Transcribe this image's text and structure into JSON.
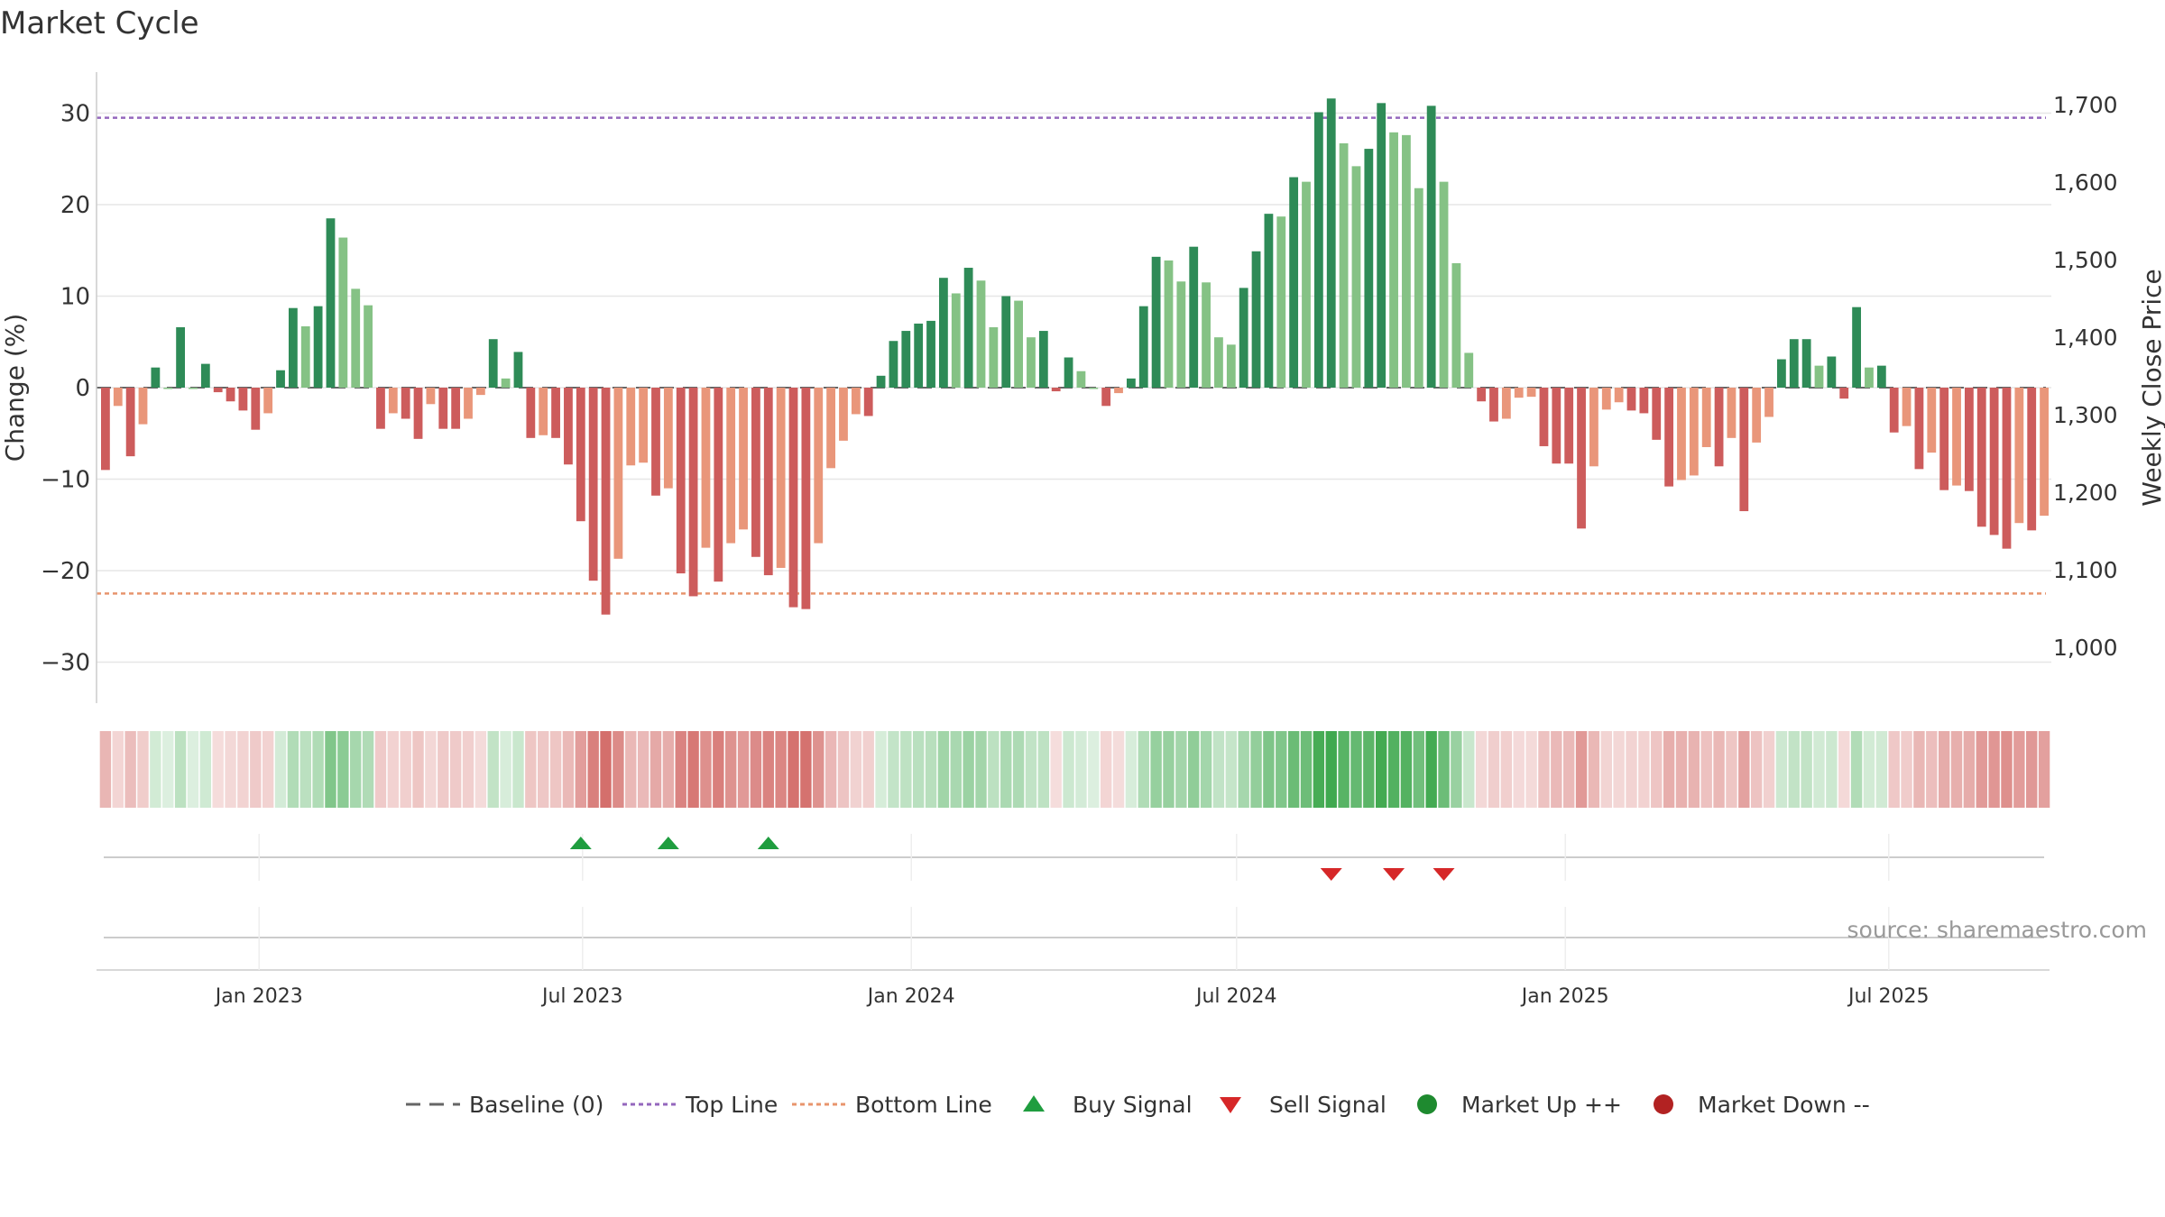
{
  "title": "Market Cycle",
  "source_text": "source: sharemaestro.com",
  "axes": {
    "y_left_label": "Change (%)",
    "y_right_label": "Weekly Close Price",
    "y_left_range": [
      -34,
      34
    ],
    "y_left_ticks": [
      30,
      20,
      10,
      0,
      -10,
      -20,
      -30
    ],
    "y_left_tick_labels": [
      "30",
      "20",
      "10",
      "0",
      "−10",
      "−20",
      "−30"
    ],
    "y_right_ticks": [
      1700,
      1600,
      1500,
      1400,
      1300,
      1200,
      1100,
      1000
    ],
    "y_right_tick_labels": [
      "1,700",
      "1,600",
      "1,500",
      "1,400",
      "1,300",
      "1,200",
      "1,100",
      "1,000"
    ],
    "x_ticks": [
      {
        "date": "2023-01-01",
        "label": "Jan 2023"
      },
      {
        "date": "2023-07-01",
        "label": "Jul 2023"
      },
      {
        "date": "2024-01-01",
        "label": "Jan 2024"
      },
      {
        "date": "2024-07-01",
        "label": "Jul 2024"
      },
      {
        "date": "2025-01-01",
        "label": "Jan 2025"
      },
      {
        "date": "2025-07-01",
        "label": "Jul 2025"
      }
    ],
    "x_range": [
      "2022-10-02",
      "2025-09-30"
    ]
  },
  "legend": [
    {
      "label": "Baseline (0)",
      "icon": "dash-line",
      "color": "#666666"
    },
    {
      "label": "Top Line",
      "icon": "dotted-line",
      "color": "#9467bd"
    },
    {
      "label": "Bottom Line",
      "icon": "dotted-line",
      "color": "#e8956d"
    },
    {
      "label": "Buy Signal",
      "icon": "triangle-up",
      "color": "#1f9d3f"
    },
    {
      "label": "Sell Signal",
      "icon": "triangle-down",
      "color": "#d62728"
    },
    {
      "label": "Market Up ++",
      "icon": "circle",
      "color": "#1e8a2f"
    },
    {
      "label": "Market Down --",
      "icon": "circle",
      "color": "#b22222"
    }
  ],
  "chart_data": {
    "type": "bar",
    "x_start": "2022-10-07",
    "x_step_days": 7,
    "top_line": 29.5,
    "bottom_line": -22.5,
    "values": [
      -9,
      -2,
      -7.5,
      -4,
      2.2,
      0,
      6.6,
      0,
      2.6,
      -0.5,
      -1.5,
      -2.5,
      -4.6,
      -2.8,
      1.9,
      8.7,
      6.7,
      8.9,
      18.5,
      16.4,
      10.8,
      9,
      -4.5,
      -2.8,
      -3.4,
      -5.6,
      -1.8,
      -4.5,
      -4.5,
      -3.4,
      -0.8,
      5.3,
      1,
      3.9,
      -5.5,
      -5.2,
      -5.5,
      -8.4,
      -14.6,
      -21.1,
      -24.8,
      -18.7,
      -8.5,
      -8.2,
      -11.8,
      -11,
      -20.3,
      -22.8,
      -17.5,
      -21.2,
      -17,
      -15.5,
      -18.5,
      -20.5,
      -19.7,
      -24,
      -24.2,
      -17,
      -8.8,
      -5.8,
      -2.9,
      -3.1,
      1.3,
      5.1,
      6.2,
      7,
      7.3,
      12,
      10.3,
      13.1,
      11.7,
      6.6,
      10,
      9.5,
      5.5,
      6.2,
      -0.4,
      3.3,
      1.8,
      0,
      -2,
      -0.6,
      1,
      8.9,
      14.3,
      13.9,
      11.6,
      15.4,
      11.5,
      5.5,
      4.7,
      10.9,
      14.9,
      19,
      18.7,
      23,
      22.5,
      30.1,
      31.6,
      26.7,
      24.2,
      26.1,
      31.1,
      27.9,
      27.6,
      21.8,
      30.8,
      22.5,
      13.6,
      3.8,
      -1.5,
      -3.7,
      -3.4,
      -1.1,
      -1,
      -6.4,
      -8.3,
      -8.3,
      -15.4,
      -8.6,
      -2.4,
      -1.6,
      -2.5,
      -2.8,
      -5.7,
      -10.8,
      -10.1,
      -9.6,
      -6.5,
      -8.6,
      -5.5,
      -13.5,
      -6,
      -3.2,
      3.1,
      5.3,
      5.3,
      2.4,
      3.4,
      -1.2,
      8.8,
      2.2,
      2.4,
      -4.9,
      -4.2,
      -8.9,
      -7.1,
      -11.2,
      -10.7,
      -11.3,
      -15.2,
      -16.1,
      -17.6,
      -14.8,
      -15.6,
      -14
    ]
  },
  "colors": {
    "bar_up_dark": "#2e8b57",
    "bar_up_light": "#85c285",
    "bar_down_dark": "#cd5c5c",
    "bar_down_light": "#e9967a",
    "baseline": "#666666",
    "top_line": "#9467bd",
    "bottom_line": "#e8956d",
    "grid": "#e6e6e6",
    "strip_up": "#3ea84d",
    "strip_down": "#c94a46",
    "buy": "#1f9d3f",
    "sell": "#d62728"
  },
  "signals": {
    "buy": [
      "2023-06-30",
      "2023-08-18",
      "2023-10-13"
    ],
    "sell": [
      "2024-08-23",
      "2024-09-27",
      "2024-10-25"
    ]
  }
}
